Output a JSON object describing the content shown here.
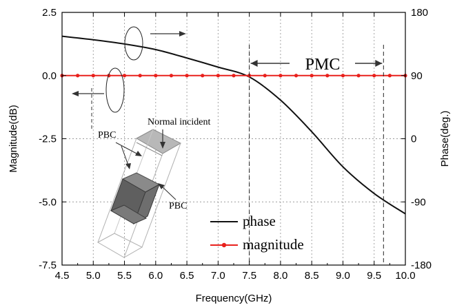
{
  "chart_data": {
    "type": "line",
    "xlabel": "Frequency(GHz)",
    "ylabel_left": "Magnitude(dB)",
    "ylabel_right": "Phase(deg.)",
    "xlim": [
      4.5,
      10.0
    ],
    "ylim_left": [
      -7.5,
      2.5
    ],
    "ylim_right": [
      -180,
      180
    ],
    "x_ticks": [
      "4.5",
      "5.0",
      "5.5",
      "6.0",
      "6.5",
      "7.0",
      "7.5",
      "8.0",
      "8.5",
      "9.0",
      "9.5",
      "10.0"
    ],
    "y_left_ticks": [
      "2.5",
      "0.0",
      "-2.5",
      "-5.0",
      "-7.5"
    ],
    "y_right_ticks": [
      "180",
      "90",
      "0",
      "-90",
      "-180"
    ],
    "grid": true,
    "series": [
      {
        "name": "phase",
        "axis": "right",
        "color": "#111111",
        "x": [
          4.5,
          5.0,
          5.5,
          6.0,
          6.5,
          7.0,
          7.5,
          8.0,
          8.5,
          9.0,
          9.5,
          10.0
        ],
        "y": [
          146,
          141,
          135,
          127,
          115,
          102,
          88,
          55,
          10,
          -40,
          -78,
          -107
        ]
      },
      {
        "name": "magnitude",
        "axis": "left",
        "color": "#e8201c",
        "x": [
          4.5,
          4.75,
          5.0,
          5.25,
          5.5,
          5.75,
          6.0,
          6.25,
          6.5,
          6.75,
          7.0,
          7.25,
          7.5,
          7.75,
          8.0,
          8.25,
          8.5,
          8.75,
          9.0,
          9.25,
          9.5,
          9.75,
          10.0
        ],
        "y": [
          0,
          0,
          0,
          0,
          0,
          0,
          0,
          0,
          0,
          0,
          0,
          0,
          0,
          0,
          0,
          0,
          0,
          0,
          0,
          0,
          0,
          0,
          0
        ]
      }
    ],
    "legend": {
      "placement": "bottom-center",
      "items": [
        "phase",
        "magnitude"
      ]
    },
    "annotations": {
      "pmc_label": "PMC",
      "pmc_band": [
        7.5,
        9.65
      ],
      "normal_incident": "Normal incident",
      "pbc_top": "PBC",
      "pbc_right": "PBC"
    }
  }
}
